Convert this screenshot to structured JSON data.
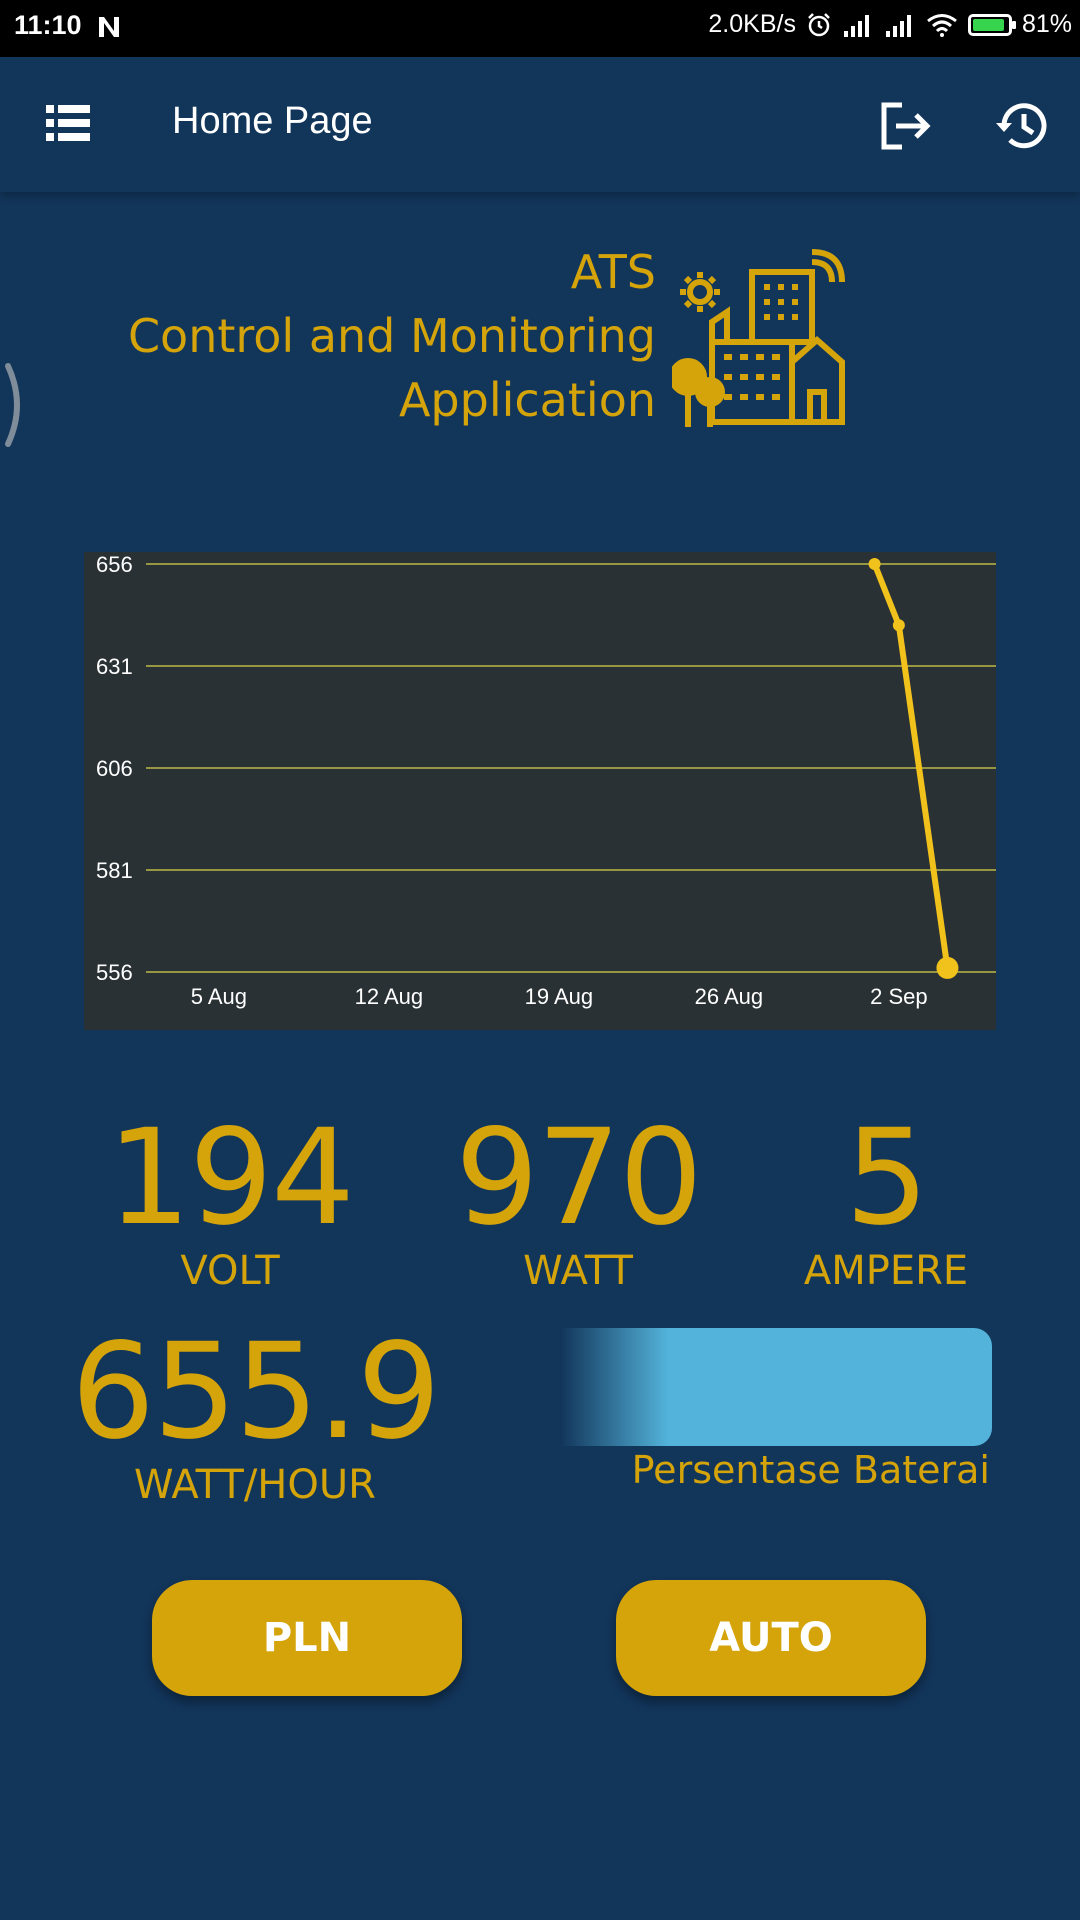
{
  "status_bar": {
    "time": "11:10",
    "speed": "2.0KB/s",
    "battery_level": "81%",
    "battery_fill": 0.81,
    "icons": [
      "n-notification-icon",
      "alarm-icon",
      "signal-icon",
      "signal-icon",
      "wifi-icon",
      "battery-charging-icon"
    ]
  },
  "appbar": {
    "title": "Home Page",
    "icons": [
      "list-menu-icon",
      "logout-icon",
      "history-icon"
    ]
  },
  "brand": {
    "line1": "ATS",
    "line2": "Control and Monitoring",
    "line3": "Application",
    "icon": "city-building-icon"
  },
  "chart_data": {
    "type": "line",
    "x": [
      "2024-09-01",
      "2024-09-02",
      "2024-09-04"
    ],
    "y": [
      656,
      641,
      557
    ],
    "x_tick_labels": [
      "5 Aug",
      "12 Aug",
      "19 Aug",
      "26 Aug",
      "2 Sep"
    ],
    "x_tick_dates": [
      "2024-08-05",
      "2024-08-12",
      "2024-08-19",
      "2024-08-26",
      "2024-09-02"
    ],
    "xlim": [
      "2024-08-02",
      "2024-09-06"
    ],
    "y_ticks": [
      656,
      631,
      606,
      581,
      556
    ],
    "ylim": [
      556,
      656
    ],
    "grid": true,
    "line_color": "#f1c21b",
    "grid_color": "#d9d24a",
    "background": "#293134"
  },
  "readings": {
    "volt": {
      "value": "194",
      "unit": "VOLT"
    },
    "watt": {
      "value": "970",
      "unit": "WATT"
    },
    "ampere": {
      "value": "5",
      "unit": "AMPERE"
    },
    "watt_hour": {
      "value": "655.9",
      "unit": "WATT/HOUR"
    }
  },
  "battery_widget": {
    "label": "Persentase Baterai",
    "color": "#53b3da"
  },
  "buttons": {
    "pln": "PLN",
    "auto": "AUTO"
  },
  "colors": {
    "background": "#12355a",
    "accent": "#d4a40a"
  }
}
